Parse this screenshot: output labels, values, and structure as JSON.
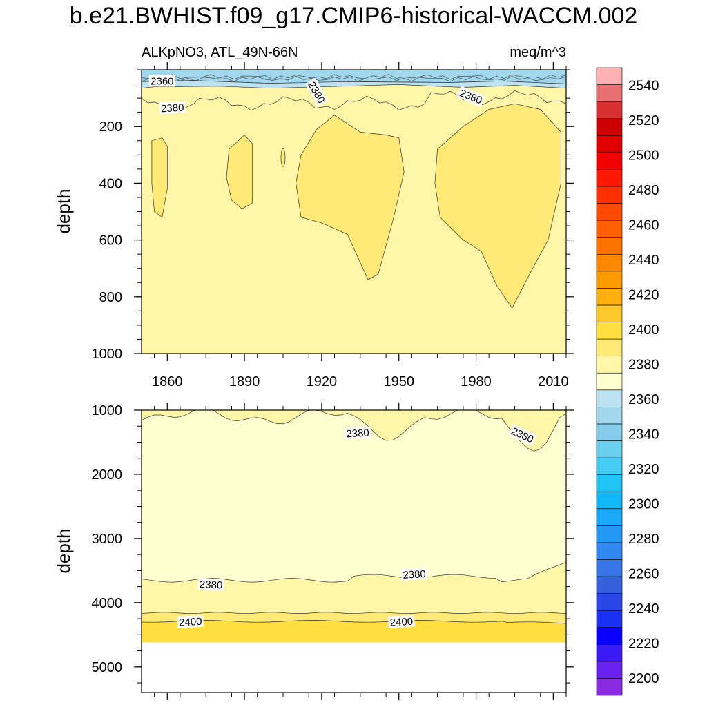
{
  "figure": {
    "title": "b.e21.BWHIST.f09_g17.CMIP6-historical-WACCM.002",
    "variable_label": "ALKpNO3, ATL_49N-66N",
    "units": "meq/m^3"
  },
  "colorbar": {
    "levels": [
      2190,
      2200,
      2210,
      2220,
      2230,
      2240,
      2250,
      2260,
      2270,
      2280,
      2290,
      2300,
      2310,
      2320,
      2330,
      2340,
      2350,
      2360,
      2370,
      2380,
      2390,
      2400,
      2410,
      2420,
      2430,
      2440,
      2450,
      2460,
      2470,
      2480,
      2490,
      2500,
      2510,
      2520,
      2530,
      2540,
      2550
    ],
    "colors": [
      "#8a2be2",
      "#6a22f0",
      "#3a1bf5",
      "#0a00ff",
      "#1a30f5",
      "#2a45e8",
      "#3560dc",
      "#3575e5",
      "#3088f0",
      "#2398f5",
      "#1aa8f8",
      "#10b8fa",
      "#20c5f5",
      "#45ccf2",
      "#6ad0f0",
      "#85cdea",
      "#a2d8ee",
      "#bde3f2",
      "#ffffd0",
      "#fff6a8",
      "#ffea78",
      "#ffdf40",
      "#ffc828",
      "#ffb010",
      "#ff9a00",
      "#ff8800",
      "#ff7400",
      "#ff6000",
      "#ff4a00",
      "#ff3000",
      "#ff1800",
      "#f00000",
      "#e00000",
      "#cc0000",
      "#d83030",
      "#e87070",
      "#ffb0b0"
    ],
    "tick_labels": [
      "2200",
      "2220",
      "2240",
      "2260",
      "2280",
      "2300",
      "2320",
      "2340",
      "2360",
      "2380",
      "2400",
      "2420",
      "2440",
      "2460",
      "2480",
      "2500",
      "2520",
      "2540"
    ]
  },
  "chart_data": [
    {
      "type": "contour",
      "panel": "upper",
      "xlabel": "",
      "ylabel": "depth",
      "x_range": [
        1850,
        2015
      ],
      "y_range": [
        0,
        1000
      ],
      "y_inverted": true,
      "x_ticks": [
        "1860",
        "1890",
        "1920",
        "1950",
        "1980",
        "2010"
      ],
      "y_ticks": [
        "200",
        "400",
        "600",
        "800",
        "1000"
      ],
      "contour_labels": [
        {
          "text": "2360",
          "x": 1858,
          "y": 40
        },
        {
          "text": "2380",
          "x": 1862,
          "y": 135
        },
        {
          "text": "2380",
          "x": 1918,
          "y": 80
        },
        {
          "text": "2380",
          "x": 1978,
          "y": 95
        }
      ],
      "regions": [
        {
          "range": "2340-2360",
          "fill": "#a2d8ee",
          "outline": [
            [
              1850,
              0
            ],
            [
              2015,
              0
            ],
            [
              2015,
              50
            ],
            [
              1990,
              40
            ],
            [
              1970,
              45
            ],
            [
              1930,
              42
            ],
            [
              1900,
              48
            ],
            [
              1870,
              38
            ],
            [
              1850,
              42
            ]
          ]
        },
        {
          "range": "2360-2370",
          "fill": "#bde3f2",
          "outline": [
            [
              1850,
              42
            ],
            [
              1870,
              38
            ],
            [
              1900,
              48
            ],
            [
              1930,
              42
            ],
            [
              1970,
              45
            ],
            [
              1990,
              40
            ],
            [
              2015,
              50
            ],
            [
              2015,
              65
            ],
            [
              1995,
              55
            ],
            [
              1975,
              62
            ],
            [
              1950,
              52
            ],
            [
              1920,
              60
            ],
            [
              1900,
              65
            ],
            [
              1880,
              58
            ],
            [
              1855,
              60
            ],
            [
              1850,
              65
            ]
          ]
        },
        {
          "range": "2390-2400",
          "fill": "#ffea78",
          "outline": [
            [
              1854,
              250
            ],
            [
              1858,
              240
            ],
            [
              1860,
              270
            ],
            [
              1860,
              420
            ],
            [
              1858,
              520
            ],
            [
              1855,
              500
            ],
            [
              1854,
              400
            ]
          ]
        },
        {
          "range": "2390-2400",
          "fill": "#ffea78",
          "outline": [
            [
              1884,
              280
            ],
            [
              1890,
              230
            ],
            [
              1893,
              260
            ],
            [
              1893,
              470
            ],
            [
              1889,
              490
            ],
            [
              1885,
              460
            ],
            [
              1883,
              380
            ]
          ]
        },
        {
          "range": "2390-2400",
          "fill": "#ffea78",
          "outline": [
            [
              1912,
              300
            ],
            [
              1918,
              210
            ],
            [
              1925,
              160
            ],
            [
              1935,
              220
            ],
            [
              1945,
              230
            ],
            [
              1950,
              240
            ],
            [
              1952,
              360
            ],
            [
              1948,
              520
            ],
            [
              1942,
              720
            ],
            [
              1938,
              740
            ],
            [
              1930,
              580
            ],
            [
              1920,
              540
            ],
            [
              1912,
              520
            ],
            [
              1910,
              400
            ]
          ]
        },
        {
          "range": "2390-2400",
          "fill": "#ffea78",
          "outline": [
            [
              1965,
              280
            ],
            [
              1975,
              200
            ],
            [
              1985,
              140
            ],
            [
              1995,
              120
            ],
            [
              2005,
              140
            ],
            [
              2013,
              220
            ],
            [
              2013,
              400
            ],
            [
              2008,
              600
            ],
            [
              2002,
              700
            ],
            [
              1994,
              840
            ],
            [
              1988,
              760
            ],
            [
              1982,
              640
            ],
            [
              1975,
              600
            ],
            [
              1966,
              520
            ],
            [
              1964,
              400
            ]
          ]
        }
      ]
    },
    {
      "type": "contour",
      "panel": "lower",
      "xlabel": "",
      "ylabel": "depth",
      "x_range": [
        1850,
        2015
      ],
      "y_range": [
        1000,
        5400
      ],
      "y_inverted": true,
      "y_ticks": [
        "1000",
        "2000",
        "3000",
        "4000",
        "5000"
      ],
      "data_bottom_depth": 4620,
      "contour_labels": [
        {
          "text": "2380",
          "x": 1934,
          "y": 1360
        },
        {
          "text": "2380",
          "x": 1998,
          "y": 1390
        },
        {
          "text": "2380",
          "x": 1877,
          "y": 3720
        },
        {
          "text": "2380",
          "x": 1956,
          "y": 3560
        },
        {
          "text": "2400",
          "x": 1869,
          "y": 4300
        },
        {
          "text": "2400",
          "x": 1951,
          "y": 4300
        }
      ]
    }
  ]
}
